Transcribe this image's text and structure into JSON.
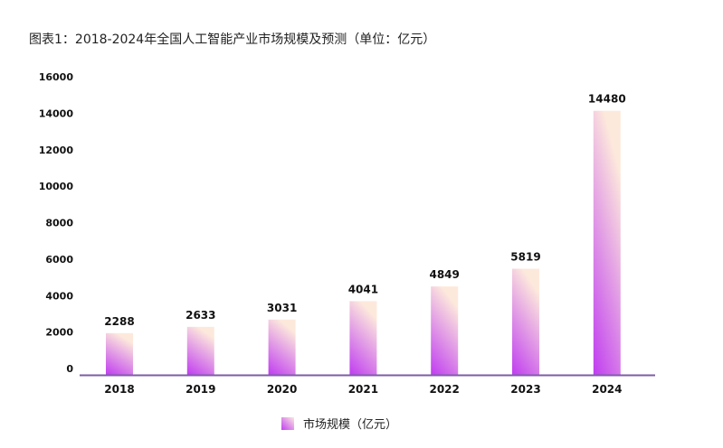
{
  "title": "图表1：2018-2024年全国人工智能产业市场规模及预测（单位：亿元）",
  "colors": {
    "bar_bottom": "#c03cf0",
    "bar_top": "#fde9dc",
    "axis": "#7b5ea7"
  },
  "chart_data": {
    "type": "bar",
    "title": "图表1：2018-2024年全国人工智能产业市场规模及预测（单位：亿元）",
    "categories": [
      "2018",
      "2019",
      "2020",
      "2021",
      "2022",
      "2023",
      "2024"
    ],
    "series": [
      {
        "name": "市场规模（亿元）",
        "values": [
          2288,
          2633,
          3031,
          4041,
          4849,
          5819,
          14480
        ]
      }
    ],
    "yticks": [
      "0",
      "2000",
      "4000",
      "6000",
      "8000",
      "10000",
      "12000",
      "14000",
      "16000"
    ],
    "ylim": [
      0,
      16000
    ],
    "grid": false,
    "legend": "bottom",
    "data_labels": true
  }
}
